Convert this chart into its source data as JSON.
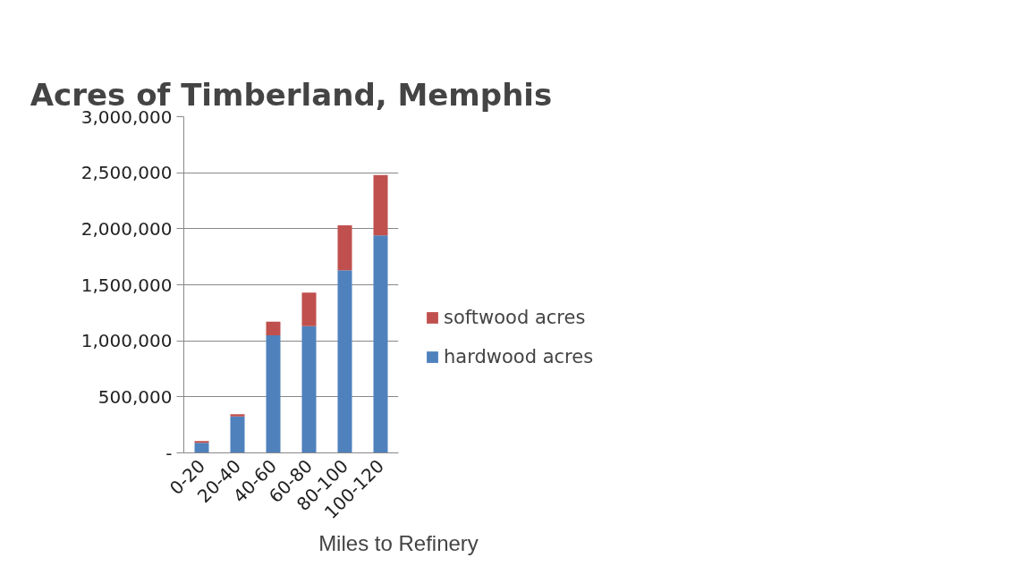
{
  "chart_data": {
    "type": "bar",
    "title": "Acres of Timberland, Memphis",
    "xlabel": "Miles to Refinery",
    "categories": [
      "0-20",
      "20-40",
      "40-60",
      "60-80",
      "80-100",
      "100-120"
    ],
    "series": [
      {
        "name": "hardwood acres",
        "color": "#4f81bd",
        "values": [
          90000,
          325000,
          1050000,
          1130000,
          1630000,
          1940000
        ]
      },
      {
        "name": "softwood acres",
        "color": "#c0504d",
        "values": [
          15000,
          20000,
          120000,
          300000,
          400000,
          540000
        ]
      }
    ],
    "stacked": true,
    "ylim": [
      0,
      3000000
    ],
    "yticks": [
      {
        "value": 0,
        "label": "-"
      },
      {
        "value": 500000,
        "label": "500,000"
      },
      {
        "value": 1000000,
        "label": "1,000,000"
      },
      {
        "value": 1500000,
        "label": "1,500,000"
      },
      {
        "value": 2000000,
        "label": "2,000,000"
      },
      {
        "value": 2500000,
        "label": "2,500,000"
      },
      {
        "value": 3000000,
        "label": "3,000,000"
      }
    ],
    "grid": "y",
    "legend": "right"
  }
}
